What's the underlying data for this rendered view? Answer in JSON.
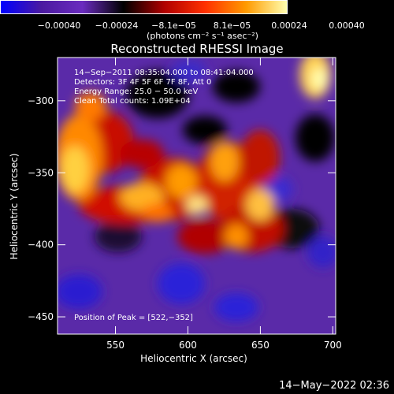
{
  "chart_data": {
    "type": "heatmap",
    "title": "Reconstructed RHESSI Image",
    "xlabel": "Heliocentric X (arcsec)",
    "ylabel": "Heliocentric Y (arcsec)",
    "xlim": [
      510,
      702
    ],
    "ylim": [
      -462,
      -270
    ],
    "x_ticks": [
      550,
      600,
      650,
      700
    ],
    "x_tick_labels": [
      "550",
      "600",
      "650",
      "700"
    ],
    "y_ticks": [
      -300,
      -350,
      -400,
      -450
    ],
    "y_tick_labels": [
      "−300",
      "−350",
      "−400",
      "−450"
    ],
    "colorbar": {
      "range": [
        -0.0004,
        0.0004
      ],
      "ticks": [
        -0.0004,
        -0.00024,
        -8.1e-05,
        8.1e-05,
        0.00024,
        0.0004
      ],
      "tick_labels": [
        "−0.00040",
        "−0.00024",
        "−8.1e−05",
        "8.1e−05",
        "0.00024",
        "0.00040"
      ],
      "units": "(photons cm⁻² s⁻¹ asec⁻²)"
    },
    "annotations": {
      "time_range": "14−Sep−2011 08:35:04.000 to 08:41:04.000",
      "detectors": "Detectors: 3F 4F 5F 6F 7F 8F, Att 0",
      "energy_range": "Energy Range: 25.0 − 50.0 keV",
      "clean": "Clean    Total counts: 1.09E+04",
      "peak": "Position of Peak = [522,−352]"
    },
    "colors": {
      "colormap": [
        "#0000ff",
        "#4b1aa0",
        "#6a2bbf",
        "#000000",
        "#b00000",
        "#ff3000",
        "#ff9a00",
        "#ffffb0"
      ]
    }
  },
  "footer": {
    "date": "14−May−2022 02:36"
  }
}
